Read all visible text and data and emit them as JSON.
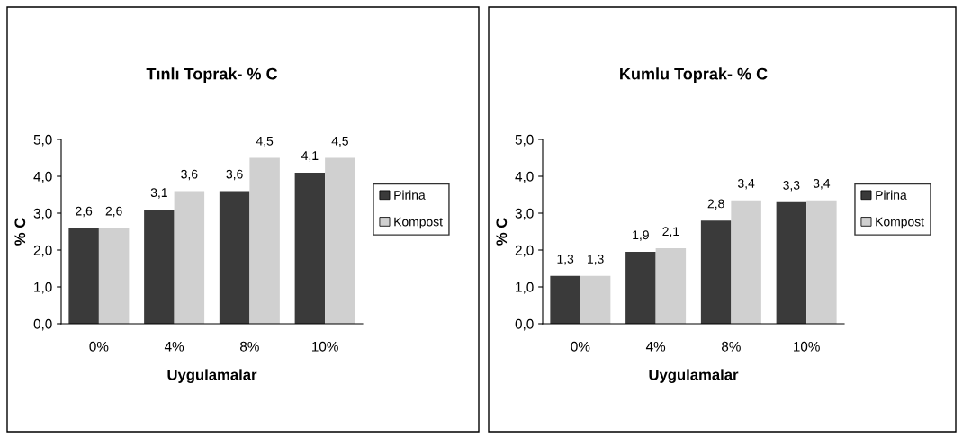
{
  "chart_data": [
    {
      "type": "bar",
      "title": "Tınlı Toprak- % C",
      "xlabel": "Uygulamalar",
      "ylabel": "% C",
      "categories": [
        "0%",
        "4%",
        "8%",
        "10%"
      ],
      "series": [
        {
          "name": "Pirina",
          "color": "#3a3a3a",
          "values": [
            2.6,
            3.1,
            3.6,
            4.1
          ],
          "value_labels": [
            "2,6",
            "3,1",
            "3,6",
            "4,1"
          ]
        },
        {
          "name": "Kompost",
          "color": "#d0d0d0",
          "values": [
            2.6,
            3.6,
            4.5,
            4.5
          ],
          "value_labels": [
            "2,6",
            "3,6",
            "4,5",
            "4,5"
          ]
        }
      ],
      "ylim": [
        0,
        5
      ],
      "yticks": [
        {
          "value": 0,
          "label": "0,0"
        },
        {
          "value": 1,
          "label": "1,0"
        },
        {
          "value": 2,
          "label": "2,0"
        },
        {
          "value": 3,
          "label": "3,0"
        },
        {
          "value": 4,
          "label": "4,0"
        },
        {
          "value": 5,
          "label": "5,0"
        }
      ],
      "grid": false,
      "legend": "right"
    },
    {
      "type": "bar",
      "title": "Kumlu Toprak- % C",
      "xlabel": "Uygulamalar",
      "ylabel": "% C",
      "categories": [
        "0%",
        "4%",
        "8%",
        "10%"
      ],
      "series": [
        {
          "name": "Pirina",
          "color": "#3a3a3a",
          "values": [
            1.3,
            1.95,
            2.8,
            3.3
          ],
          "value_labels": [
            "1,3",
            "1,9",
            "2,8",
            "3,3"
          ]
        },
        {
          "name": "Kompost",
          "color": "#d0d0d0",
          "values": [
            1.3,
            2.05,
            3.35,
            3.35
          ],
          "value_labels": [
            "1,3",
            "2,1",
            "3,4",
            "3,4"
          ]
        }
      ],
      "ylim": [
        0,
        5
      ],
      "yticks": [
        {
          "value": 0,
          "label": "0,0"
        },
        {
          "value": 1,
          "label": "1,0"
        },
        {
          "value": 2,
          "label": "2,0"
        },
        {
          "value": 3,
          "label": "3,0"
        },
        {
          "value": 4,
          "label": "4,0"
        },
        {
          "value": 5,
          "label": "5,0"
        }
      ],
      "grid": false,
      "legend": "right"
    }
  ]
}
